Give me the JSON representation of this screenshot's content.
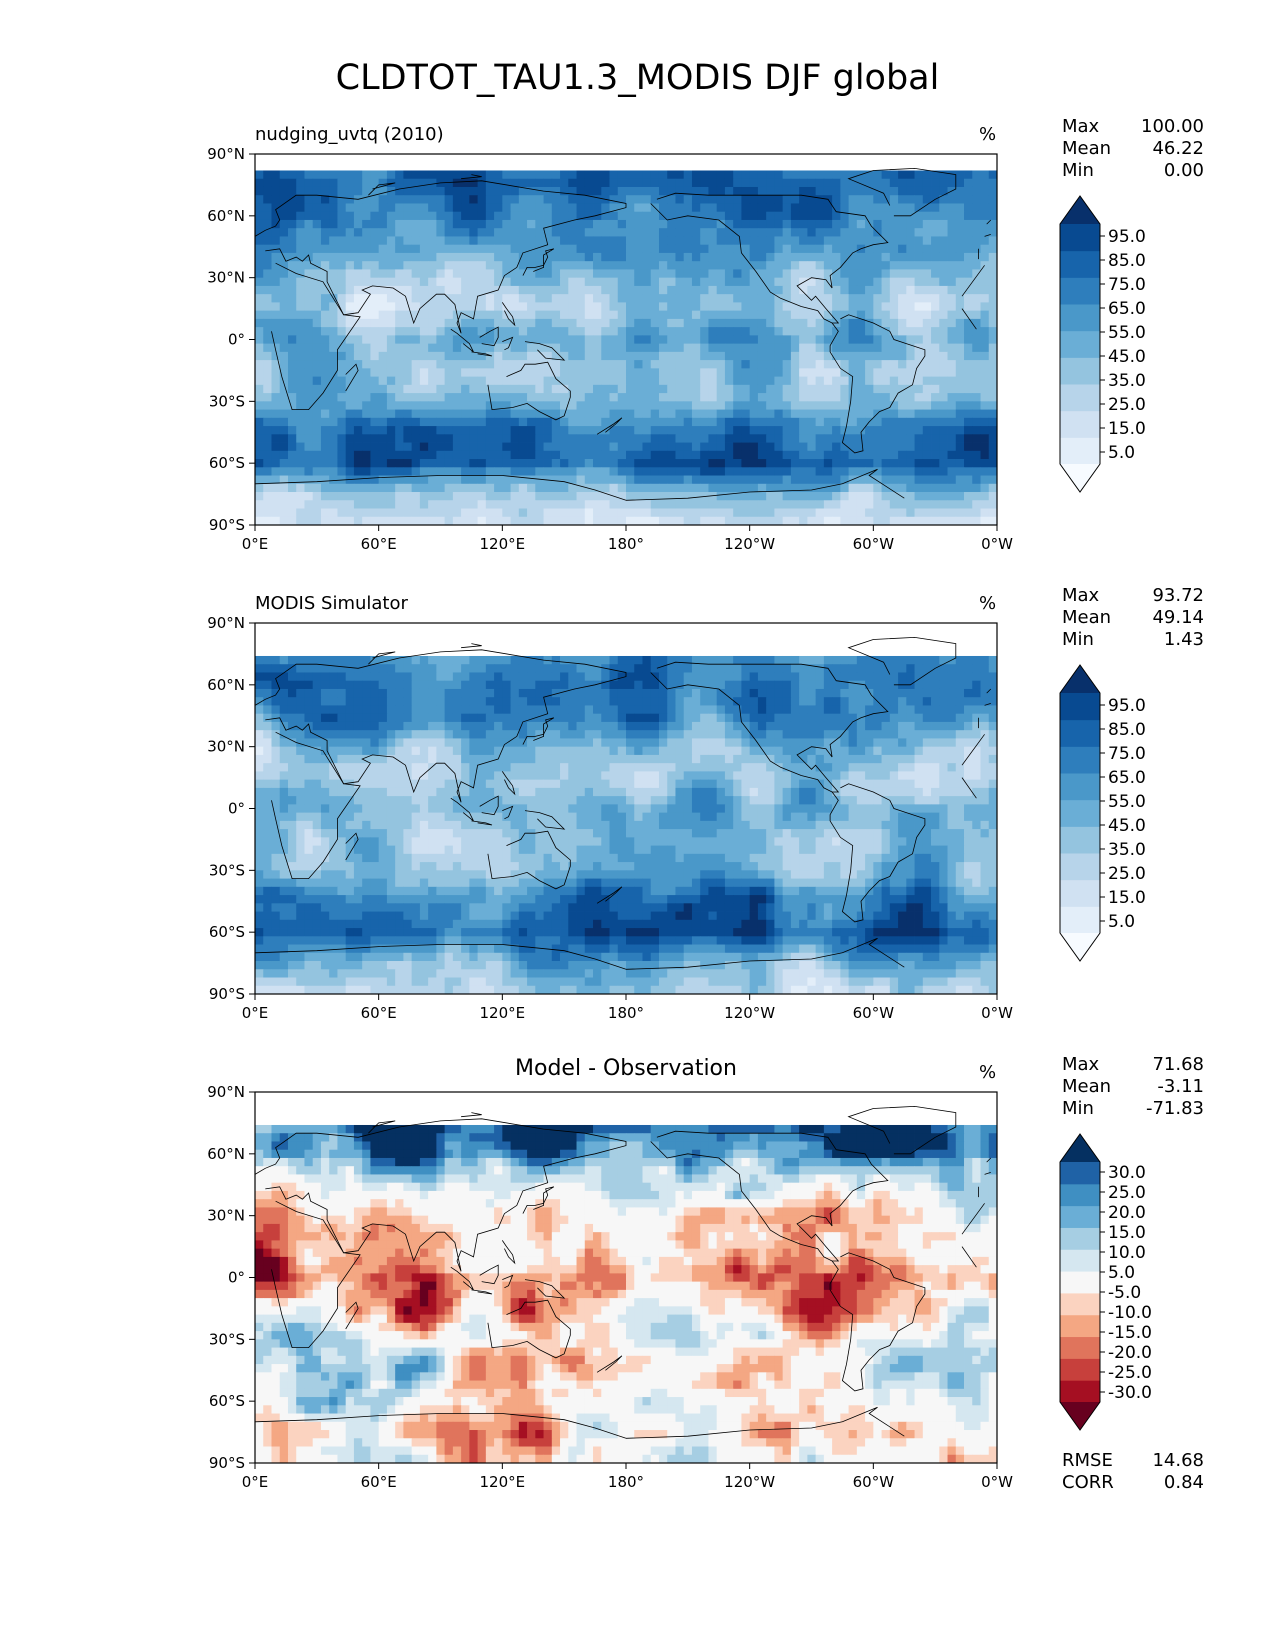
{
  "title": "CLDTOT_TAU1.3_MODIS DJF global",
  "panels": [
    {
      "id": "test",
      "left_title": "nudging_uvtq (2010)",
      "center_title": "",
      "units": "%",
      "stats": [
        [
          "Max",
          "100.00"
        ],
        [
          "Mean",
          "46.22"
        ],
        [
          "Min",
          "0.00"
        ]
      ],
      "extra_stats": [],
      "colorbar_labels": [
        "95.0",
        "85.0",
        "75.0",
        "65.0",
        "55.0",
        "45.0",
        "35.0",
        "25.0",
        "15.0",
        "5.0"
      ],
      "colors": [
        "#f7fbff",
        "#e3eef9",
        "#d0e1f2",
        "#b7d4ea",
        "#94c4df",
        "#6aaed6",
        "#4a98c9",
        "#2e7ebc",
        "#1764ab",
        "#084a91",
        "#08306b"
      ]
    },
    {
      "id": "ref",
      "left_title": "MODIS Simulator",
      "center_title": "",
      "units": "%",
      "stats": [
        [
          "Max",
          "93.72"
        ],
        [
          "Mean",
          "49.14"
        ],
        [
          "Min",
          "1.43"
        ]
      ],
      "extra_stats": [],
      "colorbar_labels": [
        "95.0",
        "85.0",
        "75.0",
        "65.0",
        "55.0",
        "45.0",
        "35.0",
        "25.0",
        "15.0",
        "5.0"
      ],
      "colors": [
        "#f7fbff",
        "#e3eef9",
        "#d0e1f2",
        "#b7d4ea",
        "#94c4df",
        "#6aaed6",
        "#4a98c9",
        "#2e7ebc",
        "#1764ab",
        "#084a91",
        "#08306b"
      ]
    },
    {
      "id": "diff",
      "left_title": "",
      "center_title": "Model - Observation",
      "units": "%",
      "stats": [
        [
          "Max",
          "71.68"
        ],
        [
          "Mean",
          "-3.11"
        ],
        [
          "Min",
          "-71.83"
        ]
      ],
      "extra_stats": [
        [
          "RMSE",
          "14.68"
        ],
        [
          "CORR",
          "0.84"
        ]
      ],
      "colorbar_labels": [
        "30.0",
        "25.0",
        "20.0",
        "15.0",
        "10.0",
        "5.0",
        "-5.0",
        "-10.0",
        "-15.0",
        "-20.0",
        "-25.0",
        "-30.0"
      ],
      "colors": [
        "#67001f",
        "#a50f22",
        "#c7403c",
        "#e0745c",
        "#f4a783",
        "#fbd3c0",
        "#f7f7f7",
        "#d5e7f0",
        "#a6cee3",
        "#6aaed6",
        "#3f8fc2",
        "#1f62a6",
        "#053061"
      ]
    }
  ],
  "axes": {
    "x_ticks": [
      "0°E",
      "60°E",
      "120°E",
      "180°",
      "120°W",
      "60°W",
      "0°W"
    ],
    "y_ticks": [
      "90°N",
      "60°N",
      "30°N",
      "0°",
      "30°S",
      "60°S",
      "90°S"
    ]
  },
  "chart_data": [
    {
      "type": "heatmap",
      "title": "nudging_uvtq (2010)",
      "units": "%",
      "xlim": [
        0,
        360
      ],
      "ylim": [
        -90,
        90
      ],
      "levels": [
        0,
        5,
        15,
        25,
        35,
        45,
        55,
        65,
        75,
        85,
        95,
        100
      ],
      "zonal_mean_profile": {
        "lat": [
          -90,
          -75,
          -60,
          -45,
          -30,
          -15,
          0,
          15,
          30,
          45,
          60,
          75,
          90
        ],
        "value": [
          15,
          40,
          85,
          75,
          45,
          40,
          50,
          30,
          40,
          65,
          80,
          85,
          70
        ]
      }
    },
    {
      "type": "heatmap",
      "title": "MODIS Simulator",
      "units": "%",
      "xlim": [
        0,
        360
      ],
      "ylim": [
        -90,
        90
      ],
      "levels": [
        0,
        5,
        15,
        25,
        35,
        45,
        55,
        65,
        75,
        85,
        95,
        100
      ],
      "zonal_mean_profile": {
        "lat": [
          -90,
          -75,
          -60,
          -45,
          -30,
          -15,
          0,
          15,
          30,
          45,
          60,
          75,
          90
        ],
        "value": [
          25,
          45,
          82,
          75,
          45,
          45,
          55,
          40,
          40,
          65,
          70,
          60,
          0
        ]
      }
    },
    {
      "type": "heatmap",
      "title": "Model - Observation",
      "units": "%",
      "xlim": [
        0,
        360
      ],
      "ylim": [
        -90,
        90
      ],
      "levels": [
        -35,
        -30,
        -25,
        -20,
        -15,
        -10,
        -5,
        5,
        10,
        15,
        20,
        25,
        30,
        35
      ],
      "zonal_mean_profile": {
        "lat": [
          -90,
          -75,
          -60,
          -45,
          -30,
          -15,
          0,
          15,
          30,
          45,
          60,
          75,
          90
        ],
        "value": [
          -5,
          -10,
          0,
          3,
          0,
          -12,
          -20,
          -8,
          -10,
          5,
          25,
          30,
          0
        ]
      }
    }
  ]
}
